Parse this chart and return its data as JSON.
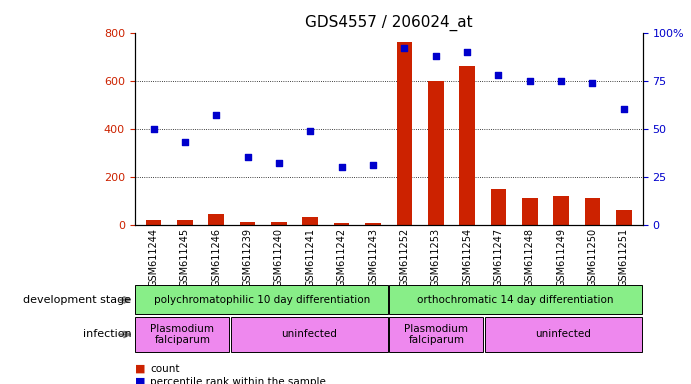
{
  "title": "GDS4557 / 206024_at",
  "samples": [
    "GSM611244",
    "GSM611245",
    "GSM611246",
    "GSM611239",
    "GSM611240",
    "GSM611241",
    "GSM611242",
    "GSM611243",
    "GSM611252",
    "GSM611253",
    "GSM611254",
    "GSM611247",
    "GSM611248",
    "GSM611249",
    "GSM611250",
    "GSM611251"
  ],
  "counts": [
    20,
    20,
    45,
    10,
    10,
    30,
    8,
    8,
    760,
    600,
    660,
    150,
    110,
    120,
    110,
    60
  ],
  "percentile_ranks": [
    50,
    43,
    57,
    35,
    32,
    49,
    30,
    31,
    92,
    88,
    90,
    78,
    75,
    75,
    74,
    60
  ],
  "bar_color": "#cc2200",
  "dot_color": "#0000cc",
  "left_ylim": [
    0,
    800
  ],
  "right_ylim": [
    0,
    100
  ],
  "left_yticks": [
    0,
    200,
    400,
    600,
    800
  ],
  "right_yticks": [
    0,
    25,
    50,
    75,
    100
  ],
  "right_yticklabels": [
    "0",
    "25",
    "50",
    "75",
    "100%"
  ],
  "grid_yticks": [
    200,
    400,
    600
  ],
  "dev_stage_groups": [
    {
      "label": "polychromatophilic 10 day differentiation",
      "start": 0,
      "end": 8,
      "color": "#88ee88"
    },
    {
      "label": "orthochromatic 14 day differentiation",
      "start": 8,
      "end": 16,
      "color": "#88ee88"
    }
  ],
  "infection_groups": [
    {
      "label": "Plasmodium\nfalciparum",
      "start": 0,
      "end": 3,
      "color": "#ee88ee"
    },
    {
      "label": "uninfected",
      "start": 3,
      "end": 8,
      "color": "#ee88ee"
    },
    {
      "label": "Plasmodium\nfalciparum",
      "start": 8,
      "end": 11,
      "color": "#ee88ee"
    },
    {
      "label": "uninfected",
      "start": 11,
      "end": 16,
      "color": "#ee88ee"
    }
  ],
  "bg_color": "#ffffff",
  "tick_label_color_left": "#cc2200",
  "tick_label_color_right": "#0000cc",
  "bar_width": 0.5,
  "dot_size": 18
}
